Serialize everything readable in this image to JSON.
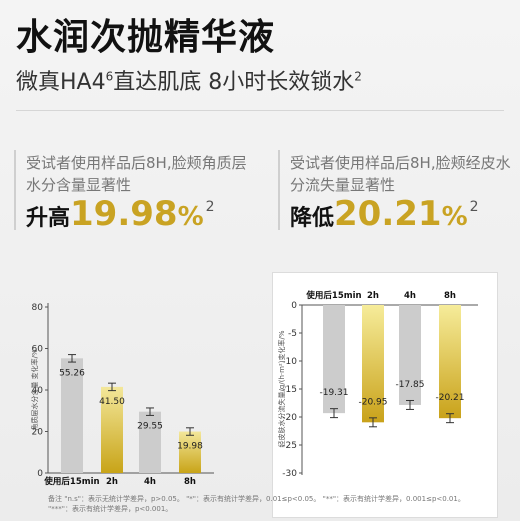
{
  "header": {
    "title": "水润次抛精华液",
    "subtitle_a": "微真HA4",
    "subtitle_sup": "6",
    "subtitle_b": "直达肌底  8小时长效锁水",
    "subtitle_sup2": "2"
  },
  "left_panel": {
    "desc_line1": "受试者使用样品后8H,脸颊角质层",
    "desc_line2": "水分含量显著性",
    "stat_label": "升高",
    "stat_number": "19.98",
    "stat_unit": "%",
    "stat_sup": "2"
  },
  "right_panel": {
    "desc_line1": "受试者使用样品后8H,脸颊经皮水",
    "desc_line2": "分流失量显著性",
    "stat_label": "降低",
    "stat_number": "20.21",
    "stat_unit": "%",
    "stat_sup": "2"
  },
  "footnote": {
    "line1": "备注 \"n.s\"：表示无统计学差异，p>0.05。 \"*\"：表示有统计学差异，0.01≤p<0.05。 \"**\"：表示有统计学差异，0.001≤p<0.01。",
    "line2": "\"***\"：表示有统计学差异，p<0.001。"
  },
  "chart_data": [
    {
      "type": "bar",
      "categories": [
        "使用后15min",
        "2h",
        "4h",
        "8h"
      ],
      "values": [
        55.26,
        41.5,
        29.55,
        19.98
      ],
      "value_labels": [
        "55.26",
        "41.50",
        "29.55",
        "19.98"
      ],
      "error": [
        1.8,
        1.8,
        1.8,
        1.8
      ],
      "ylabel": "角质层水分含量 变化率/%",
      "ylim": [
        0,
        80
      ],
      "yticks": [
        0,
        20,
        40,
        60,
        80
      ],
      "colors": [
        "#cccccc",
        "#d8c12f",
        "#cccccc",
        "#d8c12f"
      ]
    },
    {
      "type": "bar",
      "categories": [
        "使用后15min",
        "2h",
        "4h",
        "8h"
      ],
      "values": [
        -19.31,
        -20.95,
        -17.85,
        -20.21
      ],
      "value_labels": [
        "-19.31",
        "-20.95",
        "-17.85",
        "-20.21"
      ],
      "error": [
        0.8,
        0.8,
        0.8,
        0.8
      ],
      "ylabel": "经皮肤水分流失量/g/(h·m²)变化率/%",
      "ylim": [
        -30,
        0
      ],
      "yticks": [
        0,
        -5,
        -10,
        -15,
        -20,
        -25,
        -30
      ],
      "colors": [
        "#cccccc",
        "#d8c12f",
        "#cccccc",
        "#d8c12f"
      ]
    }
  ]
}
